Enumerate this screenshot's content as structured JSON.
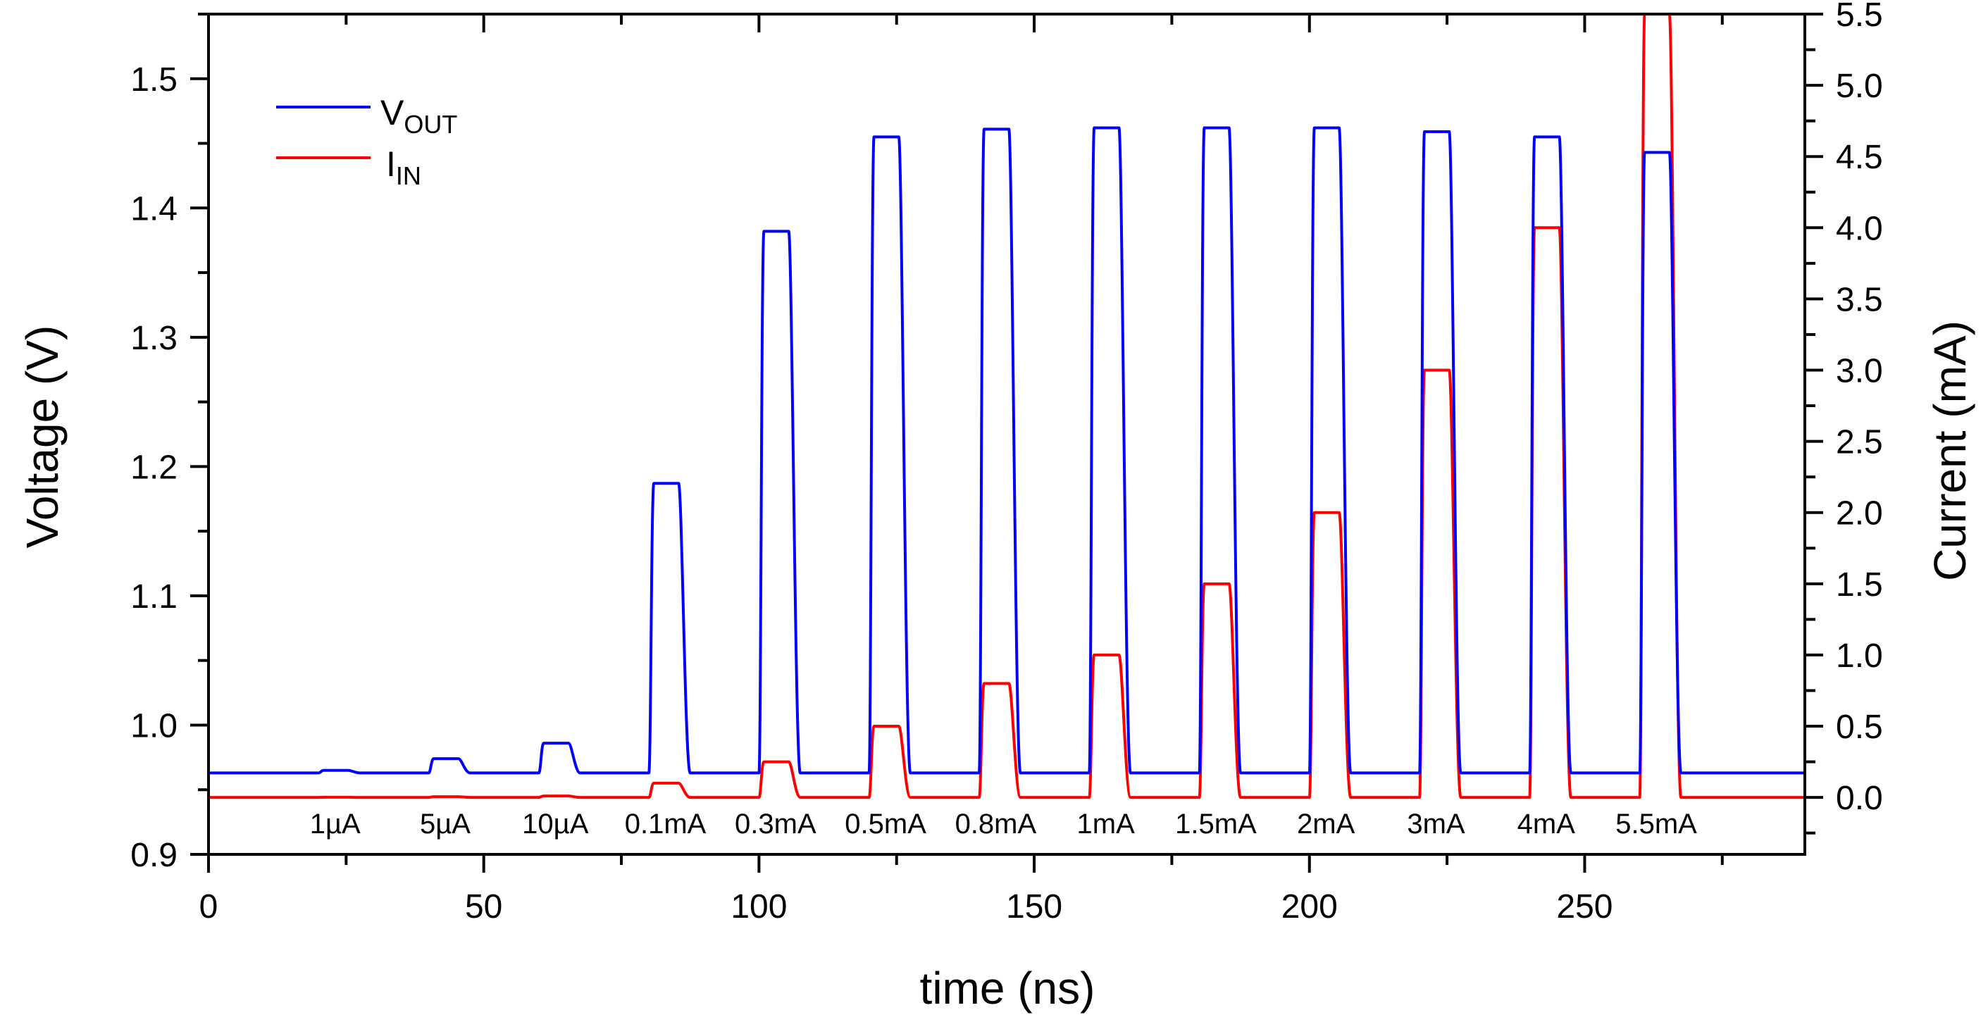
{
  "chart_data": {
    "type": "line",
    "xlabel": "time (ns)",
    "ylabel_left": "Voltage (V)",
    "ylabel_right": "Current (mA)",
    "xlim": [
      0,
      290
    ],
    "ylim_left": [
      0.9,
      1.55
    ],
    "ylim_right": [
      -0.4,
      5.5
    ],
    "xticks": [
      "0",
      "50",
      "100",
      "150",
      "200",
      "250"
    ],
    "yticks_left": [
      "0.9",
      "1.0",
      "1.1",
      "1.2",
      "1.3",
      "1.4",
      "1.5"
    ],
    "yticks_right": [
      "0.0",
      "0.5",
      "1.0",
      "1.5",
      "2.0",
      "2.5",
      "3.0",
      "3.5",
      "4.0",
      "4.5",
      "5.0",
      "5.5"
    ],
    "legend": [
      {
        "main": "V",
        "sub": "OUT",
        "color": "#0000ff"
      },
      {
        "main": "I",
        "sub": "IN",
        "color": "#ff0000"
      }
    ],
    "baseline_voltage": 0.963,
    "baseline_current": 0.0,
    "pulses": [
      {
        "label": "1µA",
        "start": 20,
        "v_peak": 0.965,
        "i_peak": 0.001
      },
      {
        "label": "5µA",
        "start": 40,
        "v_peak": 0.974,
        "i_peak": 0.005
      },
      {
        "label": "10µA",
        "start": 60,
        "v_peak": 0.986,
        "i_peak": 0.01
      },
      {
        "label": "0.1mA",
        "start": 80,
        "v_peak": 1.187,
        "i_peak": 0.1
      },
      {
        "label": "0.3mA",
        "start": 100,
        "v_peak": 1.382,
        "i_peak": 0.25
      },
      {
        "label": "0.5mA",
        "start": 120,
        "v_peak": 1.455,
        "i_peak": 0.5
      },
      {
        "label": "0.8mA",
        "start": 140,
        "v_peak": 1.461,
        "i_peak": 0.8
      },
      {
        "label": "1mA",
        "start": 160,
        "v_peak": 1.462,
        "i_peak": 1.0
      },
      {
        "label": "1.5mA",
        "start": 180,
        "v_peak": 1.462,
        "i_peak": 1.5
      },
      {
        "label": "2mA",
        "start": 200,
        "v_peak": 1.462,
        "i_peak": 2.0
      },
      {
        "label": "3mA",
        "start": 220,
        "v_peak": 1.459,
        "i_peak": 3.0
      },
      {
        "label": "4mA",
        "start": 240,
        "v_peak": 1.455,
        "i_peak": 4.0
      },
      {
        "label": "5.5mA",
        "start": 260,
        "v_peak": 1.443,
        "i_peak": 5.5
      }
    ],
    "pulse_width": 6
  }
}
